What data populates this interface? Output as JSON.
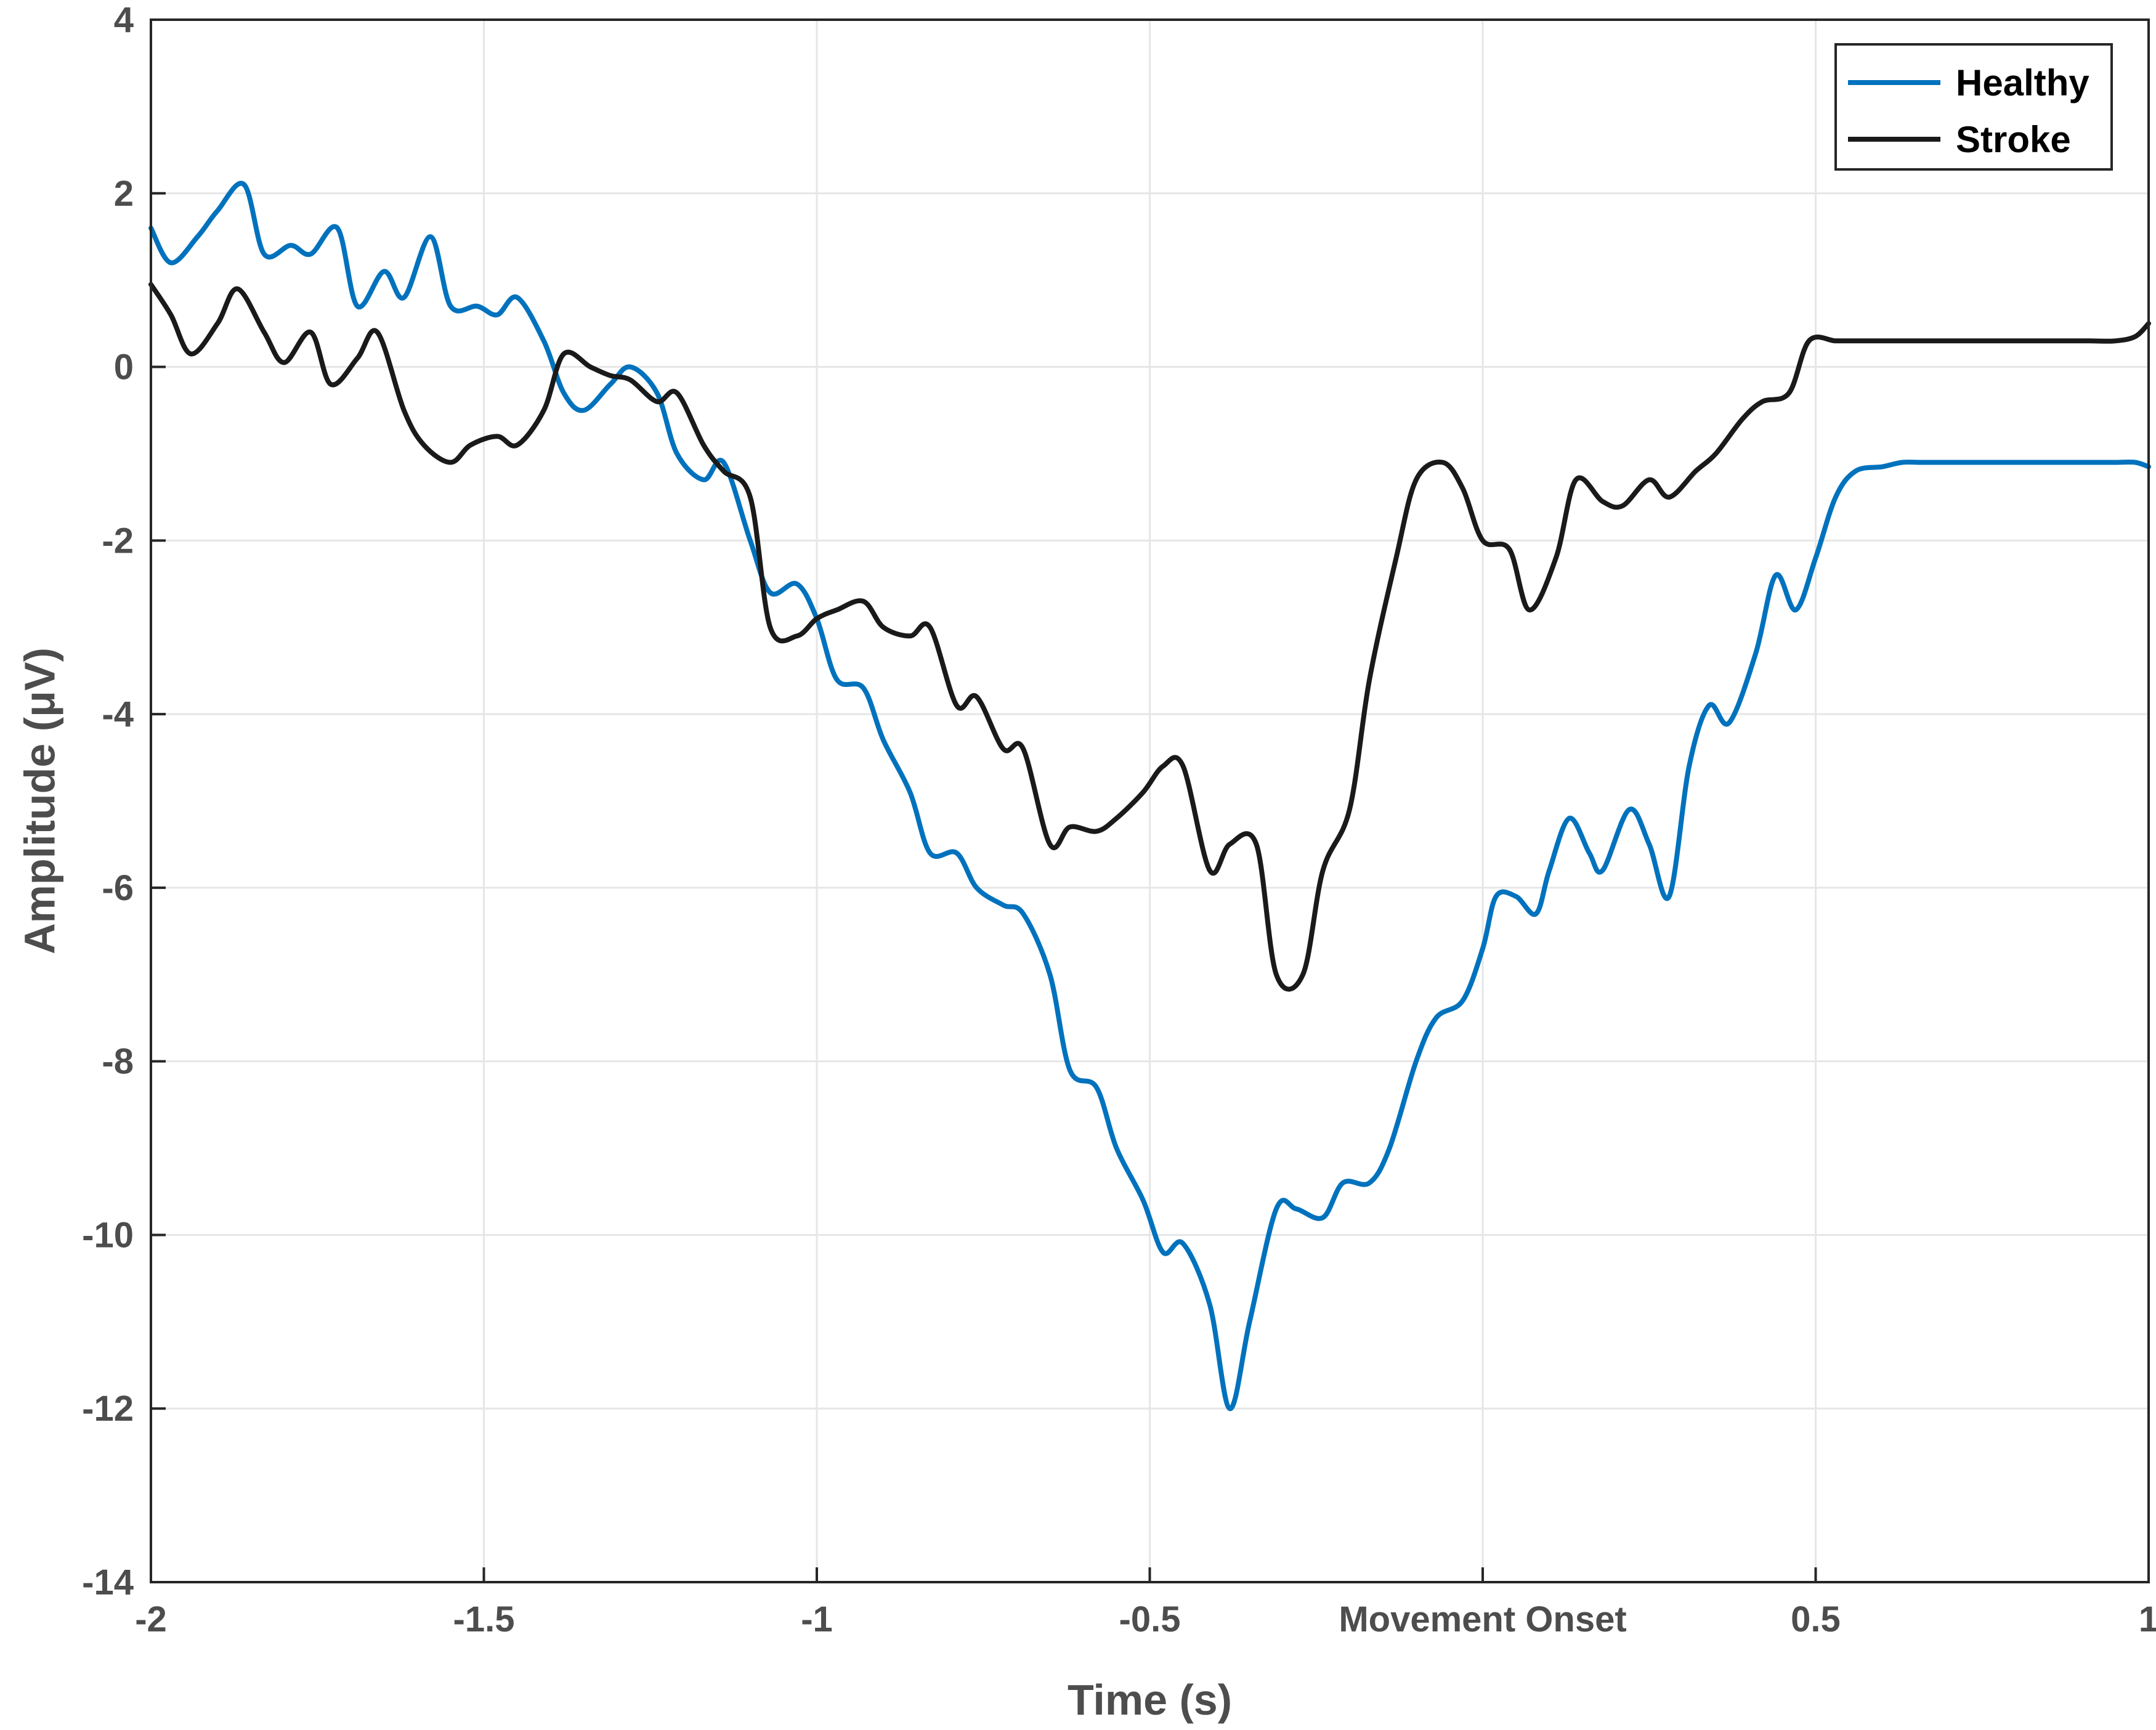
{
  "chart_data": {
    "type": "line",
    "title": "",
    "xlabel": "Time (s)",
    "ylabel": "Amplitude (μV)",
    "xlim": [
      -2,
      1
    ],
    "ylim": [
      -14,
      4
    ],
    "grid": true,
    "legend_position": "top-right",
    "x_ticks": [
      {
        "value": -2,
        "label": "-2"
      },
      {
        "value": -1.5,
        "label": "-1.5"
      },
      {
        "value": -1,
        "label": "-1"
      },
      {
        "value": -0.5,
        "label": "-0.5"
      },
      {
        "value": 0,
        "label": "Movement Onset"
      },
      {
        "value": 0.5,
        "label": "0.5"
      },
      {
        "value": 1,
        "label": "1"
      }
    ],
    "y_ticks": [
      {
        "value": 4,
        "label": "4"
      },
      {
        "value": 2,
        "label": "2"
      },
      {
        "value": 0,
        "label": "0"
      },
      {
        "value": -2,
        "label": "-2"
      },
      {
        "value": -4,
        "label": "-4"
      },
      {
        "value": -6,
        "label": "-6"
      },
      {
        "value": -8,
        "label": "-8"
      },
      {
        "value": -10,
        "label": "-10"
      },
      {
        "value": -12,
        "label": "-12"
      },
      {
        "value": -14,
        "label": "-14"
      }
    ],
    "series": [
      {
        "name": "Healthy",
        "color": "#0072BD",
        "x": [
          -2.0,
          -1.97,
          -1.93,
          -1.9,
          -1.86,
          -1.83,
          -1.79,
          -1.76,
          -1.72,
          -1.69,
          -1.65,
          -1.62,
          -1.58,
          -1.55,
          -1.51,
          -1.48,
          -1.45,
          -1.41,
          -1.38,
          -1.35,
          -1.31,
          -1.28,
          -1.24,
          -1.21,
          -1.17,
          -1.14,
          -1.1,
          -1.07,
          -1.03,
          -1.0,
          -0.97,
          -0.93,
          -0.9,
          -0.86,
          -0.83,
          -0.79,
          -0.76,
          -0.72,
          -0.69,
          -0.65,
          -0.62,
          -0.58,
          -0.55,
          -0.51,
          -0.48,
          -0.45,
          -0.41,
          -0.38,
          -0.35,
          -0.31,
          -0.28,
          -0.24,
          -0.21,
          -0.17,
          -0.14,
          -0.1,
          -0.07,
          -0.03,
          0.0,
          0.02,
          0.05,
          0.08,
          0.1,
          0.13,
          0.16,
          0.18,
          0.22,
          0.25,
          0.28,
          0.31,
          0.34,
          0.37,
          0.41,
          0.44,
          0.47,
          0.5,
          0.53,
          0.56,
          0.6,
          0.63,
          0.66,
          0.7,
          0.73,
          0.76,
          0.79,
          0.82,
          0.86,
          0.89,
          0.92,
          0.95,
          0.98,
          1.0
        ],
        "y": [
          1.6,
          1.2,
          1.5,
          1.8,
          2.1,
          1.3,
          1.4,
          1.3,
          1.6,
          0.7,
          1.1,
          0.8,
          1.5,
          0.7,
          0.7,
          0.6,
          0.8,
          0.3,
          -0.3,
          -0.5,
          -0.2,
          0.0,
          -0.3,
          -1.0,
          -1.3,
          -1.1,
          -2.0,
          -2.6,
          -2.5,
          -2.9,
          -3.6,
          -3.7,
          -4.3,
          -4.9,
          -5.6,
          -5.6,
          -6.0,
          -6.2,
          -6.3,
          -7.0,
          -8.1,
          -8.3,
          -9.0,
          -9.6,
          -10.2,
          -10.1,
          -10.8,
          -12.0,
          -11.0,
          -9.7,
          -9.7,
          -9.8,
          -9.4,
          -9.4,
          -9.0,
          -8.0,
          -7.5,
          -7.3,
          -6.7,
          -6.1,
          -6.1,
          -6.3,
          -5.8,
          -5.2,
          -5.6,
          -5.8,
          -5.1,
          -5.5,
          -6.1,
          -4.6,
          -3.9,
          -4.1,
          -3.3,
          -2.4,
          -2.8,
          -2.2,
          -1.5,
          -1.2,
          -1.15,
          -1.1,
          -1.1,
          -1.1,
          -1.1,
          -1.1,
          -1.1,
          -1.1,
          -1.1,
          -1.1,
          -1.1,
          -1.1,
          -1.1,
          -1.15
        ]
      },
      {
        "name": "Stroke",
        "color": "#1a1a1a",
        "x": [
          -2.0,
          -1.97,
          -1.94,
          -1.9,
          -1.87,
          -1.83,
          -1.8,
          -1.76,
          -1.73,
          -1.69,
          -1.66,
          -1.62,
          -1.59,
          -1.55,
          -1.52,
          -1.48,
          -1.45,
          -1.41,
          -1.38,
          -1.34,
          -1.31,
          -1.28,
          -1.24,
          -1.21,
          -1.17,
          -1.14,
          -1.1,
          -1.07,
          -1.03,
          -1.0,
          -0.97,
          -0.93,
          -0.9,
          -0.86,
          -0.83,
          -0.79,
          -0.76,
          -0.72,
          -0.69,
          -0.65,
          -0.62,
          -0.58,
          -0.55,
          -0.51,
          -0.48,
          -0.45,
          -0.41,
          -0.38,
          -0.34,
          -0.31,
          -0.27,
          -0.24,
          -0.2,
          -0.17,
          -0.13,
          -0.1,
          -0.06,
          -0.03,
          0.0,
          0.04,
          0.07,
          0.11,
          0.14,
          0.18,
          0.21,
          0.25,
          0.28,
          0.32,
          0.35,
          0.39,
          0.42,
          0.46,
          0.49,
          0.53,
          0.56,
          0.6,
          0.63,
          0.67,
          0.7,
          0.74,
          0.77,
          0.81,
          0.84,
          0.88,
          0.91,
          0.95,
          0.98,
          1.0
        ],
        "y": [
          0.95,
          0.6,
          0.15,
          0.5,
          0.9,
          0.4,
          0.05,
          0.4,
          -0.2,
          0.1,
          0.4,
          -0.5,
          -0.9,
          -1.1,
          -0.9,
          -0.8,
          -0.9,
          -0.5,
          0.15,
          0.0,
          -0.1,
          -0.15,
          -0.4,
          -0.3,
          -0.9,
          -1.2,
          -1.5,
          -3.0,
          -3.1,
          -2.9,
          -2.8,
          -2.7,
          -3.0,
          -3.1,
          -3.0,
          -3.9,
          -3.8,
          -4.4,
          -4.4,
          -5.5,
          -5.3,
          -5.35,
          -5.2,
          -4.9,
          -4.6,
          -4.6,
          -5.8,
          -5.5,
          -5.5,
          -7.0,
          -7.0,
          -5.8,
          -5.1,
          -3.6,
          -2.2,
          -1.3,
          -1.1,
          -1.4,
          -2.0,
          -2.1,
          -2.8,
          -2.2,
          -1.3,
          -1.55,
          -1.6,
          -1.3,
          -1.5,
          -1.2,
          -1.0,
          -0.6,
          -0.4,
          -0.3,
          0.3,
          0.3,
          0.3,
          0.3,
          0.3,
          0.3,
          0.3,
          0.3,
          0.3,
          0.3,
          0.3,
          0.3,
          0.3,
          0.3,
          0.35,
          0.5
        ]
      }
    ]
  }
}
